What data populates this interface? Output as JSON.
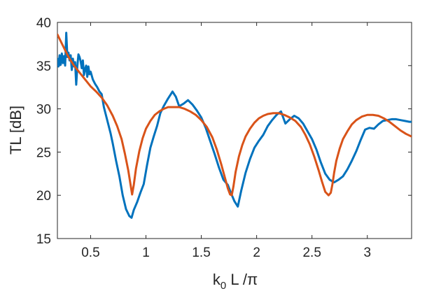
{
  "chart_data": {
    "type": "line",
    "title": "",
    "xlabel": "k0 L /π",
    "xlabel_parts": {
      "main": "k",
      "subscript": "0",
      "rest": " L /π"
    },
    "ylabel": "TL [dB]",
    "xlim": [
      0.2,
      3.4
    ],
    "ylim": [
      15,
      40
    ],
    "xticks": [
      0.5,
      1,
      1.5,
      2,
      2.5,
      3
    ],
    "xtick_labels": [
      "0.5",
      "1",
      "1.5",
      "2",
      "2.5",
      "3"
    ],
    "yticks": [
      15,
      20,
      25,
      30,
      35,
      40
    ],
    "ytick_labels": [
      "15",
      "20",
      "25",
      "30",
      "35",
      "40"
    ],
    "grid": false,
    "legend": "none",
    "series": [
      {
        "color": "#0072BD",
        "x": [
          0.2,
          0.21,
          0.22,
          0.23,
          0.24,
          0.25,
          0.26,
          0.27,
          0.28,
          0.29,
          0.3,
          0.31,
          0.32,
          0.33,
          0.34,
          0.35,
          0.36,
          0.37,
          0.38,
          0.39,
          0.4,
          0.41,
          0.42,
          0.43,
          0.44,
          0.45,
          0.46,
          0.47,
          0.48,
          0.49,
          0.5,
          0.52,
          0.54,
          0.56,
          0.58,
          0.6,
          0.62,
          0.64,
          0.66,
          0.68,
          0.7,
          0.73,
          0.76,
          0.79,
          0.82,
          0.85,
          0.87,
          0.89,
          0.92,
          0.95,
          0.98,
          1.01,
          1.04,
          1.07,
          1.1,
          1.13,
          1.16,
          1.2,
          1.24,
          1.27,
          1.3,
          1.34,
          1.38,
          1.42,
          1.46,
          1.5,
          1.54,
          1.58,
          1.62,
          1.66,
          1.7,
          1.74,
          1.77,
          1.8,
          1.83,
          1.86,
          1.9,
          1.94,
          1.98,
          2.02,
          2.06,
          2.1,
          2.14,
          2.18,
          2.22,
          2.26,
          2.3,
          2.34,
          2.38,
          2.42,
          2.46,
          2.5,
          2.54,
          2.58,
          2.62,
          2.66,
          2.7,
          2.74,
          2.78,
          2.82,
          2.86,
          2.9,
          2.94,
          2.98,
          3.02,
          3.06,
          3.1,
          3.14,
          3.18,
          3.22,
          3.26,
          3.3,
          3.34,
          3.38,
          3.4
        ],
        "y": [
          35.8,
          34.9,
          36.2,
          35.1,
          36.4,
          35.3,
          36.1,
          35.0,
          38.8,
          36.0,
          36.5,
          35.6,
          36.2,
          34.5,
          35.8,
          34.9,
          35.4,
          32.8,
          34.9,
          36.3,
          36.0,
          35.5,
          34.7,
          35.6,
          33.9,
          34.6,
          35.0,
          33.7,
          34.9,
          34.0,
          34.3,
          33.4,
          32.9,
          32.5,
          32.0,
          31.7,
          30.2,
          29.2,
          28.2,
          27.2,
          26.0,
          24.0,
          22.2,
          20.0,
          18.4,
          17.6,
          17.4,
          18.3,
          19.2,
          20.3,
          21.3,
          23.5,
          25.5,
          26.8,
          28.0,
          29.5,
          30.3,
          31.2,
          32.0,
          31.4,
          30.3,
          30.6,
          31.0,
          30.5,
          29.8,
          29.0,
          27.8,
          26.3,
          24.8,
          23.2,
          21.8,
          21.2,
          20.2,
          19.3,
          18.7,
          20.5,
          22.6,
          24.2,
          25.5,
          26.3,
          27.0,
          28.0,
          28.7,
          29.3,
          29.7,
          28.3,
          28.8,
          29.2,
          28.9,
          28.3,
          27.4,
          26.5,
          25.3,
          23.8,
          22.5,
          21.8,
          21.5,
          21.8,
          22.2,
          23.0,
          24.0,
          25.1,
          26.4,
          27.6,
          27.8,
          27.7,
          28.2,
          28.6,
          28.7,
          28.8,
          28.8,
          28.7,
          28.6,
          28.5,
          28.5
        ]
      },
      {
        "color": "#D95319",
        "x": [
          0.2,
          0.25,
          0.3,
          0.35,
          0.4,
          0.45,
          0.5,
          0.55,
          0.6,
          0.65,
          0.7,
          0.74,
          0.78,
          0.81,
          0.84,
          0.86,
          0.875,
          0.89,
          0.91,
          0.94,
          0.97,
          1.0,
          1.04,
          1.08,
          1.12,
          1.16,
          1.2,
          1.25,
          1.3,
          1.35,
          1.4,
          1.45,
          1.5,
          1.55,
          1.6,
          1.64,
          1.68,
          1.71,
          1.74,
          1.76,
          1.775,
          1.79,
          1.81,
          1.84,
          1.87,
          1.9,
          1.94,
          1.98,
          2.02,
          2.06,
          2.1,
          2.15,
          2.2,
          2.25,
          2.3,
          2.35,
          2.4,
          2.44,
          2.48,
          2.52,
          2.56,
          2.59,
          2.62,
          2.65,
          2.67,
          2.685,
          2.7,
          2.72,
          2.75,
          2.78,
          2.82,
          2.86,
          2.9,
          2.95,
          3.0,
          3.05,
          3.1,
          3.15,
          3.2,
          3.25,
          3.3,
          3.35,
          3.4
        ],
        "y": [
          38.6,
          37.3,
          36.0,
          35.0,
          34.2,
          33.4,
          32.6,
          32.0,
          31.3,
          30.4,
          29.2,
          28.0,
          26.5,
          24.8,
          22.9,
          21.3,
          20.1,
          21.2,
          23.1,
          25.1,
          26.6,
          27.7,
          28.6,
          29.3,
          29.7,
          30.0,
          30.2,
          30.2,
          30.2,
          30.0,
          29.7,
          29.3,
          28.7,
          27.9,
          26.7,
          25.3,
          23.6,
          22.2,
          20.8,
          20.1,
          20.0,
          21.0,
          22.7,
          24.5,
          25.8,
          26.8,
          27.7,
          28.4,
          28.9,
          29.2,
          29.4,
          29.5,
          29.5,
          29.3,
          29.0,
          28.6,
          27.9,
          27.0,
          25.9,
          24.5,
          22.9,
          21.6,
          20.4,
          20.0,
          20.3,
          21.3,
          22.6,
          24.0,
          25.4,
          26.5,
          27.4,
          28.2,
          28.7,
          29.1,
          29.3,
          29.3,
          29.2,
          28.9,
          28.5,
          28.0,
          27.5,
          27.1,
          26.8
        ]
      }
    ]
  }
}
